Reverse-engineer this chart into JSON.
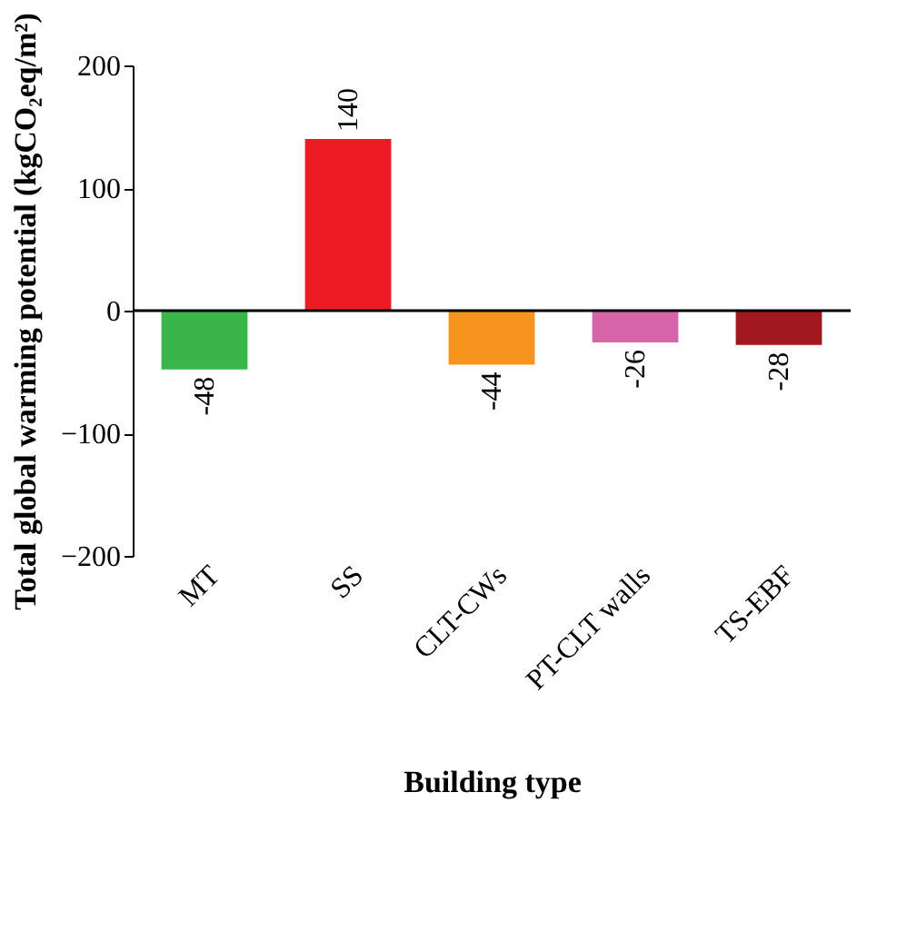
{
  "chart_data": {
    "type": "bar",
    "xlabel": "Building type",
    "ylabel": "Total global warming potential (kgCO₂eq/m²)",
    "categories": [
      "MT",
      "SS",
      "CLT-CWs",
      "PT-CLT walls",
      "TS-EBF"
    ],
    "values": [
      -48,
      140,
      -44,
      -26,
      -28
    ],
    "colors": [
      "#39b54a",
      "#ed1c24",
      "#f7941d",
      "#d565a8",
      "#a0191f"
    ],
    "ylim": [
      -200,
      200
    ],
    "yticks": [
      -200,
      -100,
      0,
      100,
      200
    ],
    "data_labels": true
  }
}
